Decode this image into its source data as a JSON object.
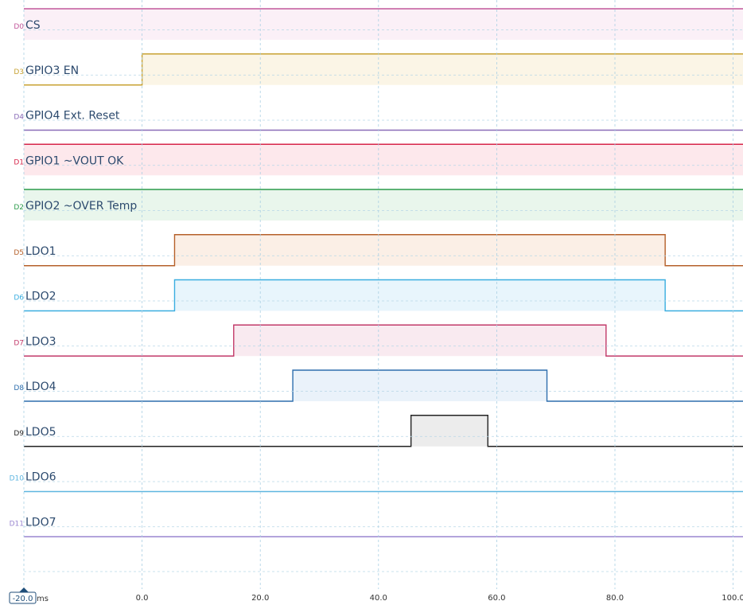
{
  "time_axis": {
    "unit": "ms",
    "start": -20.0,
    "end": 100.0,
    "ticks": [
      {
        "value": 0,
        "label": "0.0"
      },
      {
        "value": 20,
        "label": "20.0"
      },
      {
        "value": 40,
        "label": "40.0"
      },
      {
        "value": 60,
        "label": "60.0"
      },
      {
        "value": 80,
        "label": "80.0"
      },
      {
        "value": 100,
        "label": "100.0"
      }
    ],
    "cursor_label": "-20.0",
    "unit_label": "ms",
    "grid": true
  },
  "channels": [
    {
      "id": "D0",
      "name": "CS",
      "color": "#c2589b",
      "fill": "#fbf0f7",
      "initial": 1,
      "edges": []
    },
    {
      "id": "D3",
      "name": "GPIO3 EN",
      "color": "#c8a233",
      "fill": "#fbf5e6",
      "initial": 0,
      "edges": [
        0.0
      ]
    },
    {
      "id": "D4",
      "name": "GPIO4 Ext. Reset",
      "color": "#8a6db8",
      "fill": "#ffffff",
      "initial": 0,
      "edges": []
    },
    {
      "id": "D1",
      "name": "GPIO1 ~VOUT OK",
      "color": "#d7254a",
      "fill": "#fde8ec",
      "initial": 1,
      "edges": []
    },
    {
      "id": "D2",
      "name": "GPIO2 ~OVER Temp",
      "color": "#2a9a4a",
      "fill": "#e9f6ec",
      "initial": 1,
      "edges": []
    },
    {
      "id": "D5",
      "name": "LDO1",
      "color": "#b5602a",
      "fill": "#fbefe6",
      "initial": 0,
      "edges": [
        5.5,
        88.5
      ]
    },
    {
      "id": "D6",
      "name": "LDO2",
      "color": "#3aaee0",
      "fill": "#e8f5fc",
      "initial": 0,
      "edges": [
        5.5,
        88.5
      ]
    },
    {
      "id": "D7",
      "name": "LDO3",
      "color": "#c23a6a",
      "fill": "#f9eaf0",
      "initial": 0,
      "edges": [
        15.5,
        78.5
      ]
    },
    {
      "id": "D8",
      "name": "LDO4",
      "color": "#2e6fae",
      "fill": "#eaf2fa",
      "initial": 0,
      "edges": [
        25.5,
        68.5
      ]
    },
    {
      "id": "D9",
      "name": "LDO5",
      "color": "#222222",
      "fill": "#ececec",
      "initial": 0,
      "edges": [
        45.5,
        58.5
      ]
    },
    {
      "id": "D10",
      "name": "LDO6",
      "color": "#5fb6e0",
      "fill": "#ffffff",
      "initial": 0,
      "edges": []
    },
    {
      "id": "D11",
      "name": "LDO7",
      "color": "#9a86d0",
      "fill": "#ffffff",
      "initial": 0,
      "edges": []
    }
  ]
}
